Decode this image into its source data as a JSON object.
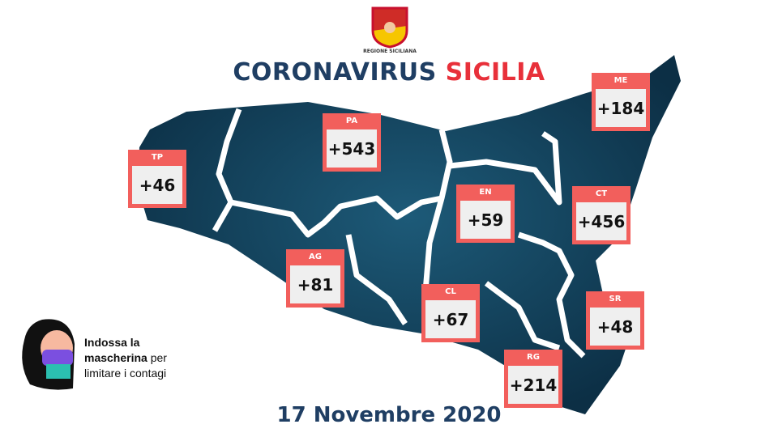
{
  "header": {
    "logo_text": "REGIONE SICILIANA",
    "title_part1": "CORONAVIRUS",
    "title_part2": "SICILIA",
    "title_color1": "#1f3e63",
    "title_color2": "#e8303a"
  },
  "provinces": [
    {
      "code": "TP",
      "value": "+46"
    },
    {
      "code": "PA",
      "value": "+543"
    },
    {
      "code": "ME",
      "value": "+184"
    },
    {
      "code": "EN",
      "value": "+59"
    },
    {
      "code": "CT",
      "value": "+456"
    },
    {
      "code": "AG",
      "value": "+81"
    },
    {
      "code": "CL",
      "value": "+67"
    },
    {
      "code": "SR",
      "value": "+48"
    },
    {
      "code": "RG",
      "value": "+214"
    }
  ],
  "notice": {
    "line1": "Indossa la",
    "line2_bold": "mascherina",
    "line2_rest": "per",
    "line3": "limitare i contagi",
    "icon": "woman-with-mask-icon"
  },
  "date": "17 Novembre 2020",
  "colors": {
    "box_header": "#f25f5c",
    "map": "#123f58"
  }
}
